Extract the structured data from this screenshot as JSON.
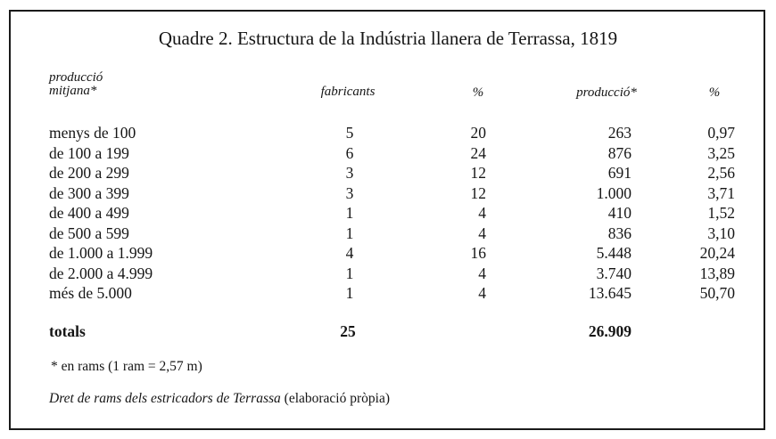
{
  "title": "Quadre 2. Estructura de la Indústria llanera de Terrassa, 1819",
  "headers": {
    "col1_line1": "producció",
    "col1_line2": "mitjana*",
    "fabricants": "fabricants",
    "pct1": "%",
    "produccio": "producció*",
    "pct2": "%"
  },
  "rows": [
    {
      "range": "menys de 100",
      "fabricants": "5",
      "pct": "20",
      "produccio": "263",
      "pct2": "0,97"
    },
    {
      "range": "de 100 a 199",
      "fabricants": "6",
      "pct": "24",
      "produccio": "876",
      "pct2": "3,25"
    },
    {
      "range": "de 200 a 299",
      "fabricants": "3",
      "pct": "12",
      "produccio": "691",
      "pct2": "2,56"
    },
    {
      "range": "de 300 a 399",
      "fabricants": "3",
      "pct": "12",
      "produccio": "1.000",
      "pct2": "3,71"
    },
    {
      "range": "de 400 a 499",
      "fabricants": "1",
      "pct": "4",
      "produccio": "410",
      "pct2": "1,52"
    },
    {
      "range": "de 500 a 599",
      "fabricants": "1",
      "pct": "4",
      "produccio": "836",
      "pct2": "3,10"
    },
    {
      "range": "de 1.000 a 1.999",
      "fabricants": "4",
      "pct": "16",
      "produccio": "5.448",
      "pct2": "20,24"
    },
    {
      "range": "de 2.000 a 4.999",
      "fabricants": "1",
      "pct": "4",
      "produccio": "3.740",
      "pct2": "13,89"
    },
    {
      "range": "més de 5.000",
      "fabricants": "1",
      "pct": "4",
      "produccio": "13.645",
      "pct2": "50,70"
    }
  ],
  "totals": {
    "label": "totals",
    "fabricants": "25",
    "produccio": "26.909"
  },
  "footnote": "*  en rams (1 ram = 2,57 m)",
  "source": {
    "italic": "Dret de rams dels estricadors de Terrassa",
    "plain": " (elaboració pròpia)"
  }
}
